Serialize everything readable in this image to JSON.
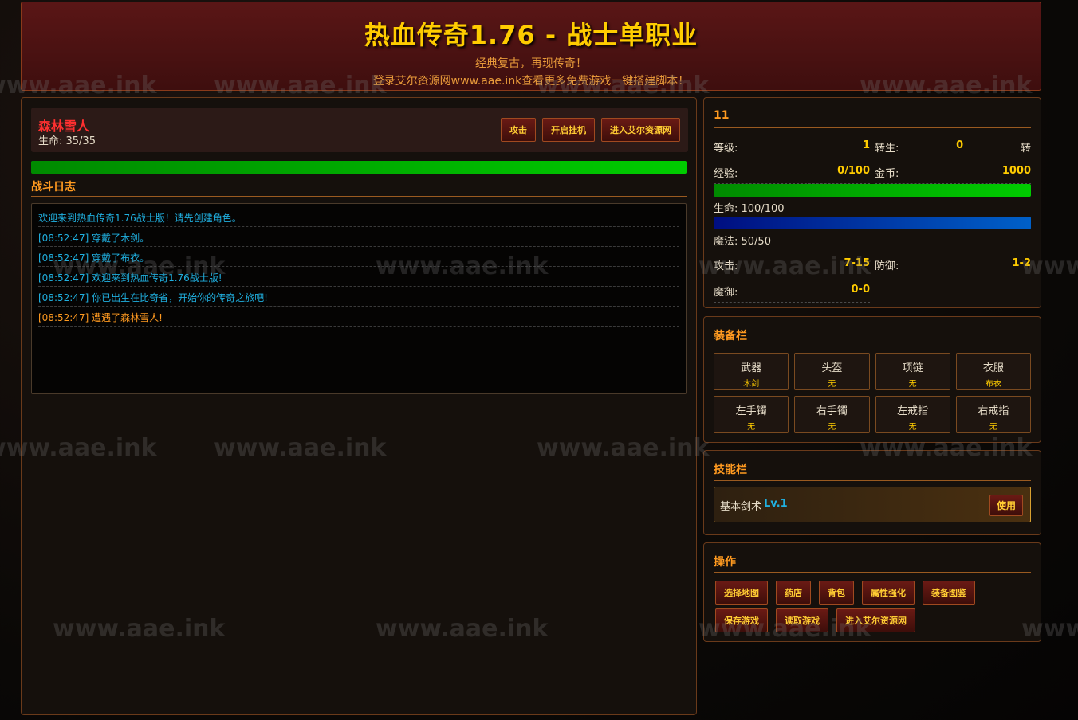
{
  "header": {
    "title": "热血传奇1.76 - 战士单职业",
    "subtitle": "经典复古，再现传奇！",
    "promo": "登录艾尔资源网www.aae.ink查看更多免费游戏一键搭建脚本！"
  },
  "monster": {
    "name": "森林雪人",
    "hp_label": "生命: 35/35",
    "hp_fraction": 1.0,
    "buttons": [
      "攻击",
      "开启挂机",
      "进入艾尔资源网"
    ]
  },
  "log": {
    "title": "战斗日志",
    "entries": [
      {
        "text": "欢迎来到热血传奇1.76战士版！请先创建角色。",
        "type": "info"
      },
      {
        "text": "[08:52:47] 穿戴了木剑。",
        "type": "info"
      },
      {
        "text": "[08:52:47] 穿戴了布衣。",
        "type": "info"
      },
      {
        "text": "[08:52:47] 欢迎来到热血传奇1.76战士版!",
        "type": "info"
      },
      {
        "text": "[08:52:47] 你已出生在比奇省，开始你的传奇之旅吧!",
        "type": "info"
      },
      {
        "text": "[08:52:47] 遭遇了森林雪人!",
        "type": "warn"
      }
    ]
  },
  "player": {
    "name": "11",
    "level_label": "等级:",
    "level": "1",
    "rebirth_label": "转生:",
    "rebirth": "0",
    "rebirth_unit": "转",
    "exp_label": "经验:",
    "exp": "0/100",
    "gold_label": "金币:",
    "gold": "1000",
    "hp_label": "生命: 100/100",
    "hp_fraction": 1.0,
    "mp_label": "魔法: 50/50",
    "mp_fraction": 1.0,
    "atk_label": "攻击:",
    "atk": "7-15",
    "def_label": "防御:",
    "def": "1-2",
    "mdef_label": "魔御:",
    "mdef": "0-0"
  },
  "equipment": {
    "title": "装备栏",
    "slots": [
      {
        "name": "武器",
        "item": "木剑"
      },
      {
        "name": "头盔",
        "item": "无"
      },
      {
        "name": "项链",
        "item": "无"
      },
      {
        "name": "衣服",
        "item": "布衣"
      },
      {
        "name": "左手镯",
        "item": "无"
      },
      {
        "name": "右手镯",
        "item": "无"
      },
      {
        "name": "左戒指",
        "item": "无"
      },
      {
        "name": "右戒指",
        "item": "无"
      }
    ]
  },
  "skills": {
    "title": "技能栏",
    "items": [
      {
        "name": "基本剑术",
        "level": "Lv.1",
        "use_label": "使用"
      }
    ]
  },
  "actions": {
    "title": "操作",
    "buttons": [
      "选择地图",
      "药店",
      "背包",
      "属性强化",
      "装备图鉴",
      "保存游戏",
      "读取游戏",
      "进入艾尔资源网"
    ]
  },
  "watermark": "www.aae.ink",
  "colors": {
    "accent": "#ff9a20",
    "gold": "#ffcc00",
    "monster": "#ff3030",
    "log_info": "#20b0e0"
  }
}
